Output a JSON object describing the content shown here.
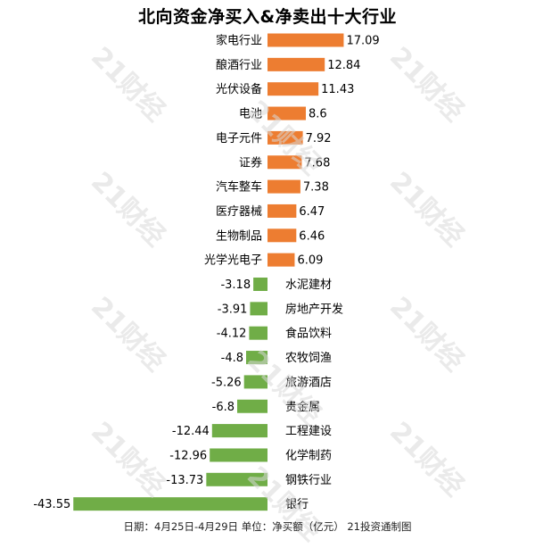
{
  "title": "北向资金净买入&净卖出十大行业",
  "footer": "日期：4月25日-4月29日  单位：净买额（亿元）  21投资通制图",
  "watermark": "21财经",
  "colors": {
    "positive": "#ED7D31",
    "negative": "#70AD47"
  },
  "chart_data": {
    "type": "bar",
    "orientation": "horizontal",
    "title": "北向资金净买入&净卖出十大行业",
    "unit": "净买额（亿元）",
    "categories": [
      "家电行业",
      "酿酒行业",
      "光伏设备",
      "电池",
      "电子元件",
      "证券",
      "汽车整车",
      "医疗器械",
      "生物制品",
      "光学光电子",
      "水泥建材",
      "房地产开发",
      "食品饮料",
      "农牧饲渔",
      "旅游酒店",
      "贵金属",
      "工程建设",
      "化学制药",
      "钢铁行业",
      "银行"
    ],
    "values": [
      17.09,
      12.84,
      11.43,
      8.6,
      7.92,
      7.68,
      7.38,
      6.47,
      6.46,
      6.09,
      -3.18,
      -3.91,
      -4.12,
      -4.8,
      -5.26,
      -6.8,
      -12.44,
      -12.96,
      -13.73,
      -43.55
    ],
    "value_labels": [
      "17.09",
      "12.84",
      "11.43",
      "8.6",
      "7.92",
      "7.68",
      "7.38",
      "6.47",
      "6.46",
      "6.09",
      "-3.18",
      "-3.91",
      "-4.12",
      "-4.8",
      "-5.26",
      "-6.8",
      "-12.44",
      "-12.96",
      "-13.73",
      "-43.55"
    ],
    "grid": false,
    "legend": "none"
  }
}
